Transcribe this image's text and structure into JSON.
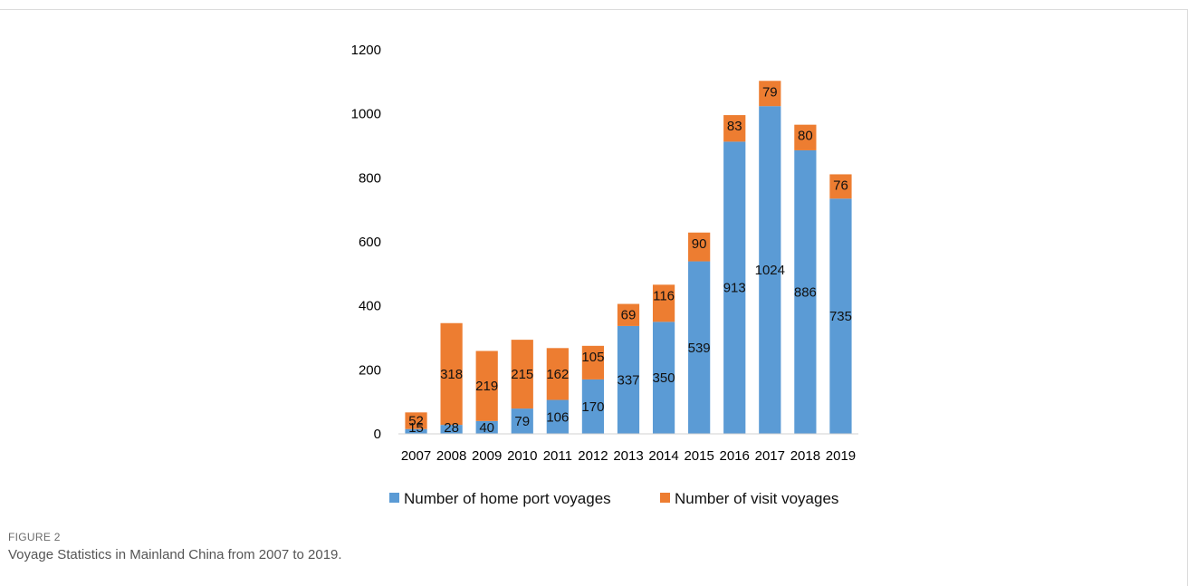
{
  "chart_data": {
    "type": "bar",
    "stacked": true,
    "categories": [
      "2007",
      "2008",
      "2009",
      "2010",
      "2011",
      "2012",
      "2013",
      "2014",
      "2015",
      "2016",
      "2017",
      "2018",
      "2019"
    ],
    "series": [
      {
        "name": "Number of home port voyages",
        "color": "#5B9BD5",
        "values": [
          15,
          28,
          40,
          79,
          106,
          170,
          337,
          350,
          539,
          913,
          1024,
          886,
          735
        ]
      },
      {
        "name": "Number of  visit voyages",
        "color": "#ED7D31",
        "values": [
          52,
          318,
          219,
          215,
          162,
          105,
          69,
          116,
          90,
          83,
          79,
          80,
          76
        ]
      }
    ],
    "ylim": [
      0,
      1200
    ],
    "yticks": [
      0,
      200,
      400,
      600,
      800,
      1000,
      1200
    ],
    "grid": false,
    "legend_position": "bottom"
  },
  "figure": {
    "label": "FIGURE 2",
    "caption": "Voyage Statistics in Mainland China from 2007 to 2019."
  }
}
